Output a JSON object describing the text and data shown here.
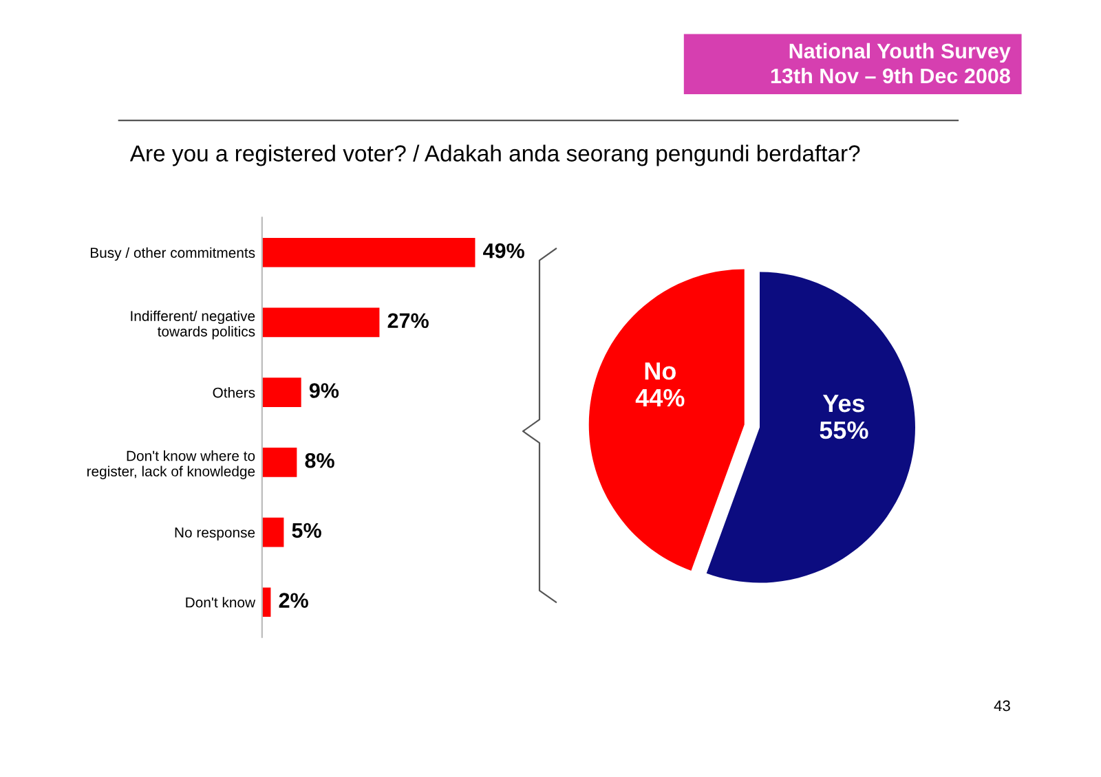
{
  "chart_data": [
    {
      "type": "bar",
      "orientation": "horizontal",
      "title": "Are you a registered voter? / Adakah anda seorang pengundi berdaftar?",
      "categories": [
        "Busy / other commitments",
        "Indifferent/ negative\ntowards politics",
        "Others",
        "Don't know where to\nregister, lack of knowledge",
        "No response",
        "Don't know"
      ],
      "values": [
        49,
        27,
        9,
        8,
        5,
        2
      ],
      "color": "#ff0000",
      "value_labels": [
        "49%",
        "27%",
        "9%",
        "8%",
        "5%",
        "2%"
      ],
      "annotations": [
        "National Youth Survey",
        "13th Nov – 9th Dec 2008",
        "43"
      ]
    },
    {
      "type": "pie",
      "categories": [
        "No",
        "Yes"
      ],
      "values": [
        44,
        55
      ],
      "colors": [
        "#ff0000",
        "#0c0c80"
      ],
      "value_labels": [
        "44%",
        "55%"
      ]
    }
  ]
}
